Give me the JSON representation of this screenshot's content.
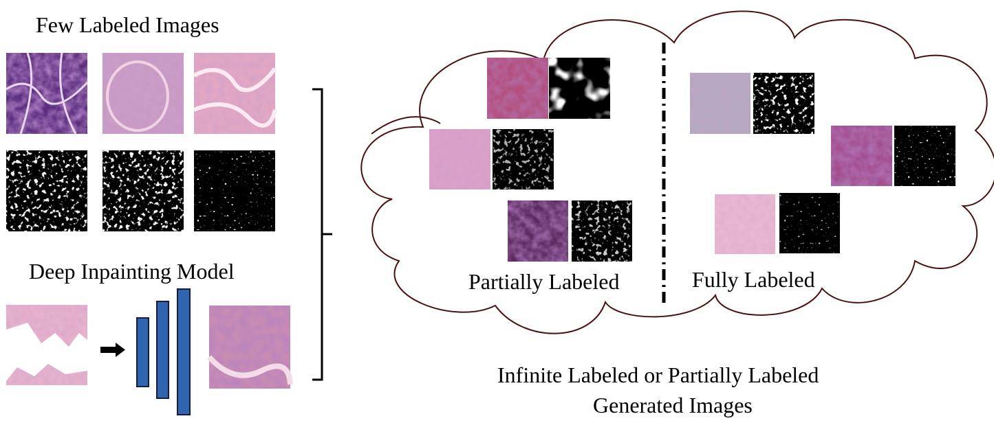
{
  "left": {
    "few_labeled_title": "Few Labeled Images",
    "inpainting_title": "Deep Inpainting Model"
  },
  "cloud": {
    "partial_caption": "Partially Labeled",
    "full_caption": "Fully Labeled"
  },
  "footer": {
    "line1": "Infinite Labeled or Partially Labeled",
    "line2": "Generated Images"
  },
  "colors": {
    "cloud_outline": "#4a1010",
    "network_block": "#2e64b0",
    "network_block_border": "#1a1a3a",
    "he_dark": "#4d2a74",
    "he_mid": "#b86aa6",
    "he_light": "#e6b4cf"
  }
}
